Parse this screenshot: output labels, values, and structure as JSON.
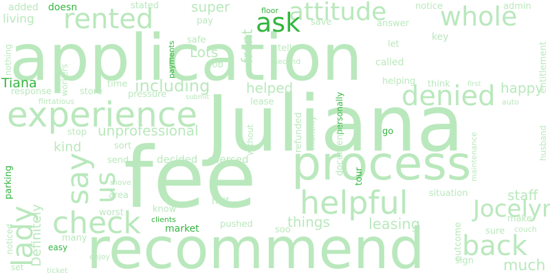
{
  "colors": {
    "background": "#ffffff",
    "light": "#b9e8bc",
    "mid": "#8fd996",
    "dark": "#33b53f"
  },
  "words": [
    {
      "id": "application",
      "text": "application"
    },
    {
      "id": "juliana",
      "text": "Juliana"
    },
    {
      "id": "fee",
      "text": "fee"
    },
    {
      "id": "recommend",
      "text": "recommend"
    },
    {
      "id": "process",
      "text": "process"
    },
    {
      "id": "experience",
      "text": "experience"
    },
    {
      "id": "helpful",
      "text": "helpful"
    },
    {
      "id": "rented",
      "text": "rented"
    },
    {
      "id": "attitude",
      "text": "attitude"
    },
    {
      "id": "whole",
      "text": "whole"
    },
    {
      "id": "denied",
      "text": "denied"
    },
    {
      "id": "check",
      "text": "check"
    },
    {
      "id": "back",
      "text": "back"
    },
    {
      "id": "jocelyn",
      "text": "Jocelyn"
    },
    {
      "id": "ask",
      "text": "ask"
    },
    {
      "id": "lady",
      "text": "lady"
    },
    {
      "id": "say",
      "text": "say"
    },
    {
      "id": "us",
      "text": "us"
    },
    {
      "id": "including",
      "text": "including"
    },
    {
      "id": "much",
      "text": "much"
    },
    {
      "id": "leasing",
      "text": "leasing"
    },
    {
      "id": "things",
      "text": "things"
    },
    {
      "id": "helped",
      "text": "helped"
    },
    {
      "id": "happy",
      "text": "happy"
    },
    {
      "id": "unprofessional",
      "text": "unprofessional"
    },
    {
      "id": "lots",
      "text": "Lots"
    },
    {
      "id": "front",
      "text": "front"
    },
    {
      "id": "staff",
      "text": "staff"
    },
    {
      "id": "tiana",
      "text": "Tiana"
    },
    {
      "id": "super",
      "text": "super"
    },
    {
      "id": "definitely",
      "text": "Definitely"
    },
    {
      "id": "kind",
      "text": "kind"
    },
    {
      "id": "added",
      "text": "added"
    },
    {
      "id": "doesn",
      "text": "doesn"
    },
    {
      "id": "stated",
      "text": "stated"
    },
    {
      "id": "notice",
      "text": "notice"
    },
    {
      "id": "admin",
      "text": "admin"
    },
    {
      "id": "living",
      "text": "living"
    },
    {
      "id": "floor",
      "text": "floor"
    },
    {
      "id": "pay",
      "text": "pay"
    },
    {
      "id": "save",
      "text": "save"
    },
    {
      "id": "answer",
      "text": "answer"
    },
    {
      "id": "key",
      "text": "key"
    },
    {
      "id": "let",
      "text": "let"
    },
    {
      "id": "safe",
      "text": "safe"
    },
    {
      "id": "fob",
      "text": "fob"
    },
    {
      "id": "tells",
      "text": "tells"
    },
    {
      "id": "second",
      "text": "second"
    },
    {
      "id": "called",
      "text": "called"
    },
    {
      "id": "nothing",
      "text": "nothing"
    },
    {
      "id": "workers",
      "text": "workers"
    },
    {
      "id": "payments",
      "text": "payments"
    },
    {
      "id": "response",
      "text": "response"
    },
    {
      "id": "store",
      "text": "store"
    },
    {
      "id": "time",
      "text": "time"
    },
    {
      "id": "helping",
      "text": "helping"
    },
    {
      "id": "think",
      "text": "think"
    },
    {
      "id": "first",
      "text": "first"
    },
    {
      "id": "entitlement",
      "text": "entitlement"
    },
    {
      "id": "flirtatious",
      "text": "flirtatious"
    },
    {
      "id": "pressure",
      "text": "pressure"
    },
    {
      "id": "submit",
      "text": "submit"
    },
    {
      "id": "lease",
      "text": "lease"
    },
    {
      "id": "auto",
      "text": "auto"
    },
    {
      "id": "personally",
      "text": "personally"
    },
    {
      "id": "husband",
      "text": "husband"
    },
    {
      "id": "stop",
      "text": "stop"
    },
    {
      "id": "sort",
      "text": "sort"
    },
    {
      "id": "monthly",
      "text": "monthly"
    },
    {
      "id": "refunded",
      "text": "refunded"
    },
    {
      "id": "documents",
      "text": "documents"
    },
    {
      "id": "without",
      "text": "without"
    },
    {
      "id": "go",
      "text": "go"
    },
    {
      "id": "send",
      "text": "send"
    },
    {
      "id": "decided",
      "text": "decided"
    },
    {
      "id": "coerced",
      "text": "coerced"
    },
    {
      "id": "tour",
      "text": "tour"
    },
    {
      "id": "parking",
      "text": "parking"
    },
    {
      "id": "maintenance",
      "text": "maintenance"
    },
    {
      "id": "move",
      "text": "move"
    },
    {
      "id": "area",
      "text": "area"
    },
    {
      "id": "situation",
      "text": "situation"
    },
    {
      "id": "worst",
      "text": "worst"
    },
    {
      "id": "half",
      "text": "half"
    },
    {
      "id": "know",
      "text": "know"
    },
    {
      "id": "clients",
      "text": "clients"
    },
    {
      "id": "make",
      "text": "make"
    },
    {
      "id": "noticed",
      "text": "noticed"
    },
    {
      "id": "market",
      "text": "market"
    },
    {
      "id": "pushed",
      "text": "pushed"
    },
    {
      "id": "soo",
      "text": "soo"
    },
    {
      "id": "outcome",
      "text": "outcome"
    },
    {
      "id": "sure",
      "text": "sure"
    },
    {
      "id": "couch",
      "text": "couch"
    },
    {
      "id": "many",
      "text": "many"
    },
    {
      "id": "easy",
      "text": "easy"
    },
    {
      "id": "enjoy",
      "text": "enjoy"
    },
    {
      "id": "sign",
      "text": "sign"
    },
    {
      "id": "set",
      "text": "set"
    },
    {
      "id": "ticket",
      "text": "ticket"
    }
  ]
}
